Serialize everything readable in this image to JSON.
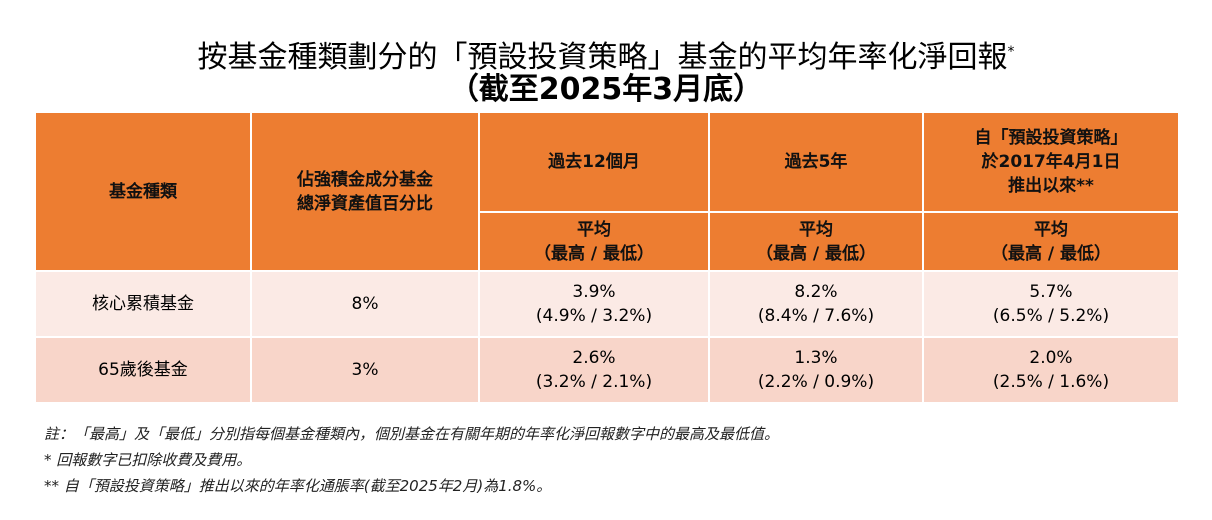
{
  "title": {
    "line1": "按基金種類劃分的「預設投資策略」基金的平均年率化淨回報",
    "line1_mark": "*",
    "line2": "（截至2025年3月底）"
  },
  "header": {
    "fund_type": "基金種類",
    "pct_line1": "佔強積金成分基金",
    "pct_line2": "總淨資產值百分比",
    "periods": [
      {
        "lines": [
          "過去12個月"
        ]
      },
      {
        "lines": [
          "過去5年"
        ]
      },
      {
        "lines": [
          "自「預設投資策略」",
          "於2017年4月1日",
          "推出以來**"
        ]
      }
    ],
    "sub_line1": "平均",
    "sub_line2": "（最高 / 最低）"
  },
  "rows": [
    {
      "name": "核心累積基金",
      "pct": "8%",
      "values": [
        {
          "avg": "3.9%",
          "range": "(4.9% / 3.2%)"
        },
        {
          "avg": "8.2%",
          "range": "(8.4% / 7.6%)"
        },
        {
          "avg": "5.7%",
          "range": "(6.5% / 5.2%)"
        }
      ]
    },
    {
      "name": "65歲後基金",
      "pct": "3%",
      "values": [
        {
          "avg": "2.6%",
          "range": "(3.2% / 2.1%)"
        },
        {
          "avg": "1.3%",
          "range": "(2.2% / 0.9%)"
        },
        {
          "avg": "2.0%",
          "range": "(2.5% / 1.6%)"
        }
      ]
    }
  ],
  "notes": [
    "註：「最高」及「最低」分別指每個基金種類內，個別基金在有關年期的年率化淨回報數字中的最高及最低值。",
    "*   回報數字已扣除收費及費用。",
    "** 自「預設投資策略」推出以來的年率化通脹率(截至2025年2月)為1.8%。"
  ]
}
